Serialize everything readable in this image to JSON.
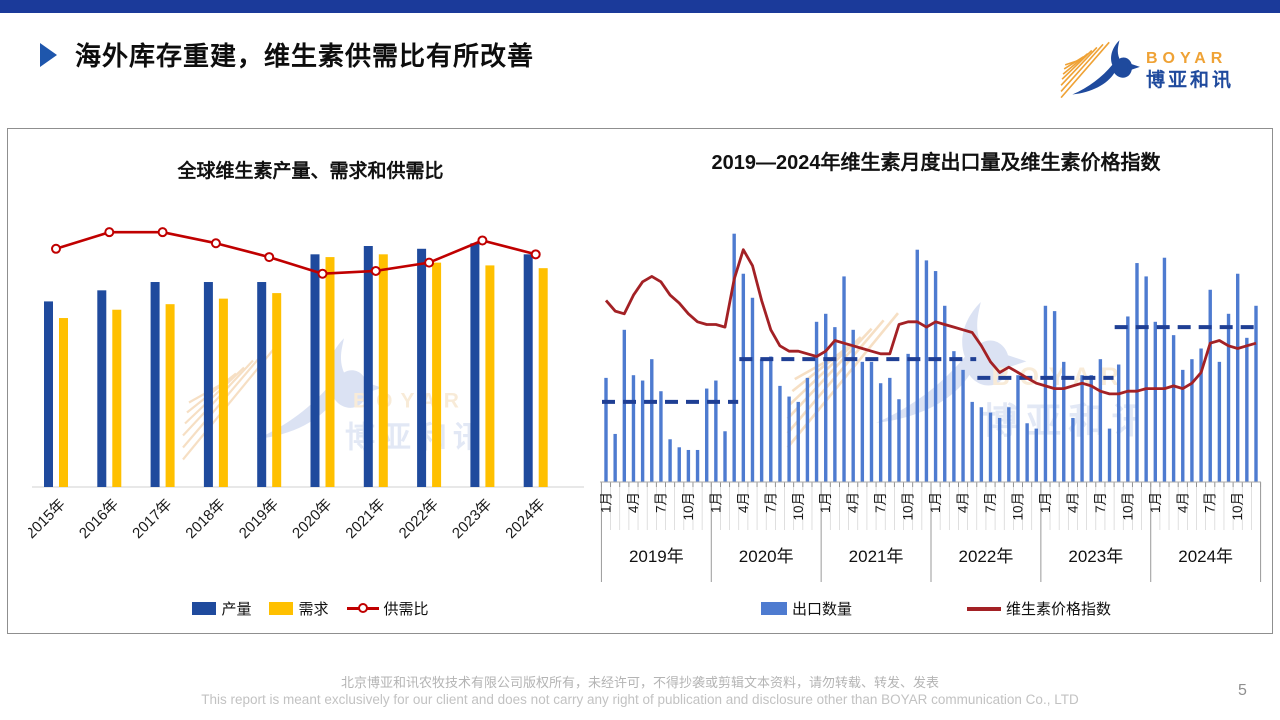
{
  "slide": {
    "top_title": "海外库存重建，维生素供需比有所改善",
    "page_number": "5",
    "footer_line1": "北京博亚和讯农牧技术有限公司版权所有，未经许可，不得抄袭或剪辑文本资料，请勿转载、转发、发表",
    "footer_line2": "This report is meant exclusively for our client and does not carry any right of publication and disclosure other than BOYAR communication Co., LTD"
  },
  "logo": {
    "brand": "BOYAR",
    "brand_cn": "博亚和讯",
    "brand_color": "#EFA235",
    "brand_cn_color": "#1F4A9D"
  },
  "chart_data": [
    {
      "type": "bar+line",
      "title": "全球维生素产量、需求和供需比",
      "categories": [
        "2015年",
        "2016年",
        "2017年",
        "2018年",
        "2019年",
        "2020年",
        "2021年",
        "2022年",
        "2023年",
        "2024年"
      ],
      "series": [
        {
          "name": "产量",
          "type": "bar",
          "color": "#1F4A9D",
          "values": [
            67,
            71,
            74,
            74,
            74,
            84,
            87,
            86,
            88,
            84
          ]
        },
        {
          "name": "需求",
          "type": "bar",
          "color": "#FFC000",
          "values": [
            61,
            64,
            66,
            68,
            70,
            83,
            84,
            81,
            80,
            79
          ]
        },
        {
          "name": "供需比",
          "type": "line",
          "color": "#C00000",
          "marker": "open-circle",
          "values": [
            86,
            92,
            92,
            88,
            83,
            77,
            78,
            81,
            89,
            84
          ]
        }
      ],
      "ylim": [
        0,
        100
      ],
      "value_axis_visible": false,
      "grid": false,
      "legend_position": "bottom"
    },
    {
      "type": "bar+line",
      "title": "2019—2024年维生素月度出口量及维生素价格指数",
      "x_axis": {
        "years": [
          "2019年",
          "2020年",
          "2021年",
          "2022年",
          "2023年",
          "2024年"
        ],
        "months_per_year": 12,
        "month_tick_labels": [
          "1月",
          "4月",
          "7月",
          "10月"
        ],
        "month_tick_positions": [
          1,
          4,
          7,
          10
        ]
      },
      "series": [
        {
          "name": "出口数量",
          "type": "bar",
          "color": "#4E7BD0",
          "values": [
            39,
            18,
            57,
            40,
            38,
            46,
            34,
            16,
            13,
            12,
            12,
            35,
            38,
            19,
            93,
            78,
            69,
            46,
            47,
            36,
            32,
            30,
            39,
            60,
            63,
            58,
            77,
            57,
            45,
            45,
            37,
            39,
            31,
            48,
            87,
            83,
            79,
            66,
            49,
            42,
            30,
            28,
            26,
            24,
            28,
            40,
            22,
            20,
            66,
            64,
            45,
            24,
            40,
            40,
            46,
            20,
            44,
            62,
            82,
            77,
            60,
            84,
            55,
            42,
            46,
            50,
            72,
            45,
            63,
            78,
            54,
            66
          ]
        },
        {
          "name": "维生素价格指数",
          "type": "line",
          "color": "#A32125",
          "values": [
            68,
            64,
            63,
            70,
            75,
            77,
            75,
            70,
            67,
            63,
            60,
            59,
            59,
            58,
            76,
            87,
            81,
            68,
            57,
            51,
            49,
            49,
            48,
            47,
            49,
            53,
            52,
            51,
            50,
            49,
            48,
            48,
            59,
            60,
            60,
            58,
            60,
            59,
            58,
            57,
            56,
            51,
            45,
            41,
            43,
            41,
            39,
            37,
            36,
            35,
            35,
            36,
            37,
            36,
            34,
            33,
            33,
            34,
            34,
            35,
            35,
            35,
            36,
            35,
            37,
            41,
            52,
            53,
            51,
            50,
            51,
            52
          ]
        },
        {
          "name": "dashed-reference-line",
          "type": "step-dashed",
          "color": "#1F3F94",
          "in_legend": false,
          "segments": [
            {
              "start_month": 0,
              "end_month": 14,
              "level": 30
            },
            {
              "start_month": 15,
              "end_month": 40,
              "level": 46
            },
            {
              "start_month": 41,
              "end_month": 55,
              "level": 39
            },
            {
              "start_month": 56,
              "end_month": 71,
              "level": 58
            }
          ]
        }
      ],
      "ylim": [
        0,
        100
      ],
      "value_axis_visible": false,
      "grid": false,
      "legend_position": "bottom"
    }
  ]
}
